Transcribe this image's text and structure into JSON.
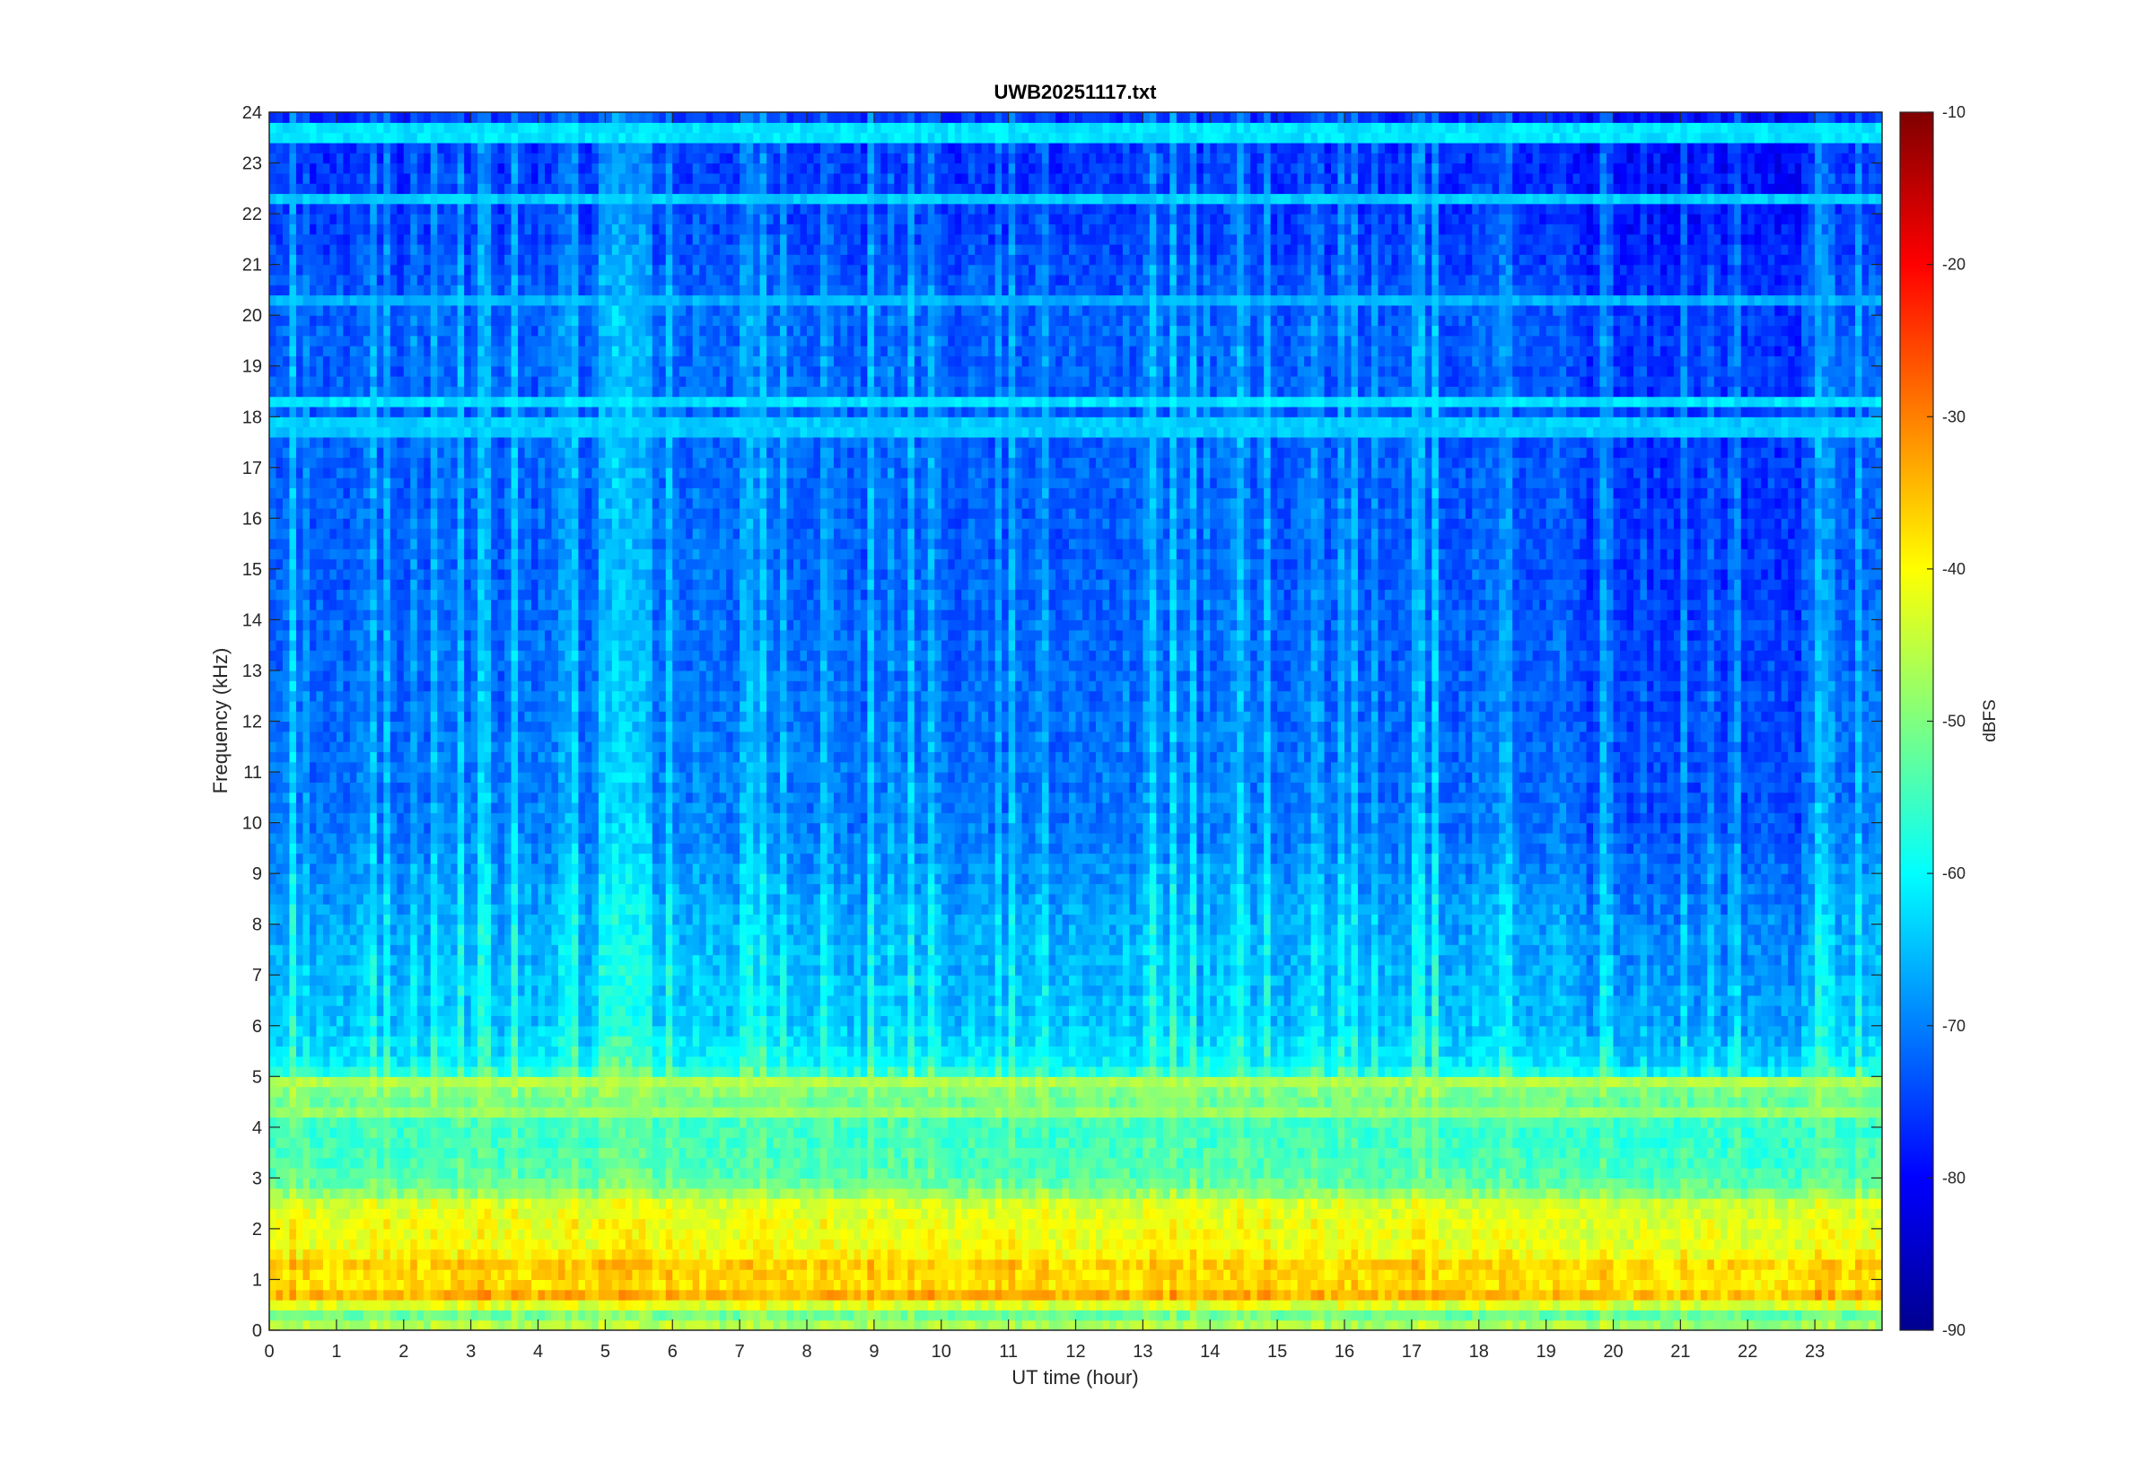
{
  "chart_data": {
    "type": "heatmap",
    "title": "UWB20251117.txt",
    "xlabel": "UT time (hour)",
    "ylabel": "Frequency (kHz)",
    "xlim": [
      0,
      24
    ],
    "ylim": [
      0,
      24
    ],
    "x_ticks": [
      "0",
      "1",
      "2",
      "3",
      "4",
      "5",
      "6",
      "7",
      "8",
      "9",
      "10",
      "11",
      "12",
      "13",
      "14",
      "15",
      "16",
      "17",
      "18",
      "19",
      "20",
      "21",
      "22",
      "23"
    ],
    "y_ticks": [
      "0",
      "1",
      "2",
      "3",
      "4",
      "5",
      "6",
      "7",
      "8",
      "9",
      "10",
      "11",
      "12",
      "13",
      "14",
      "15",
      "16",
      "17",
      "18",
      "19",
      "20",
      "21",
      "22",
      "23",
      "24"
    ],
    "colormap": "jet",
    "colorbar": {
      "label": "dBFS",
      "range": [
        -90,
        -10
      ],
      "ticks": [
        "-10",
        "-20",
        "-30",
        "-40",
        "-50",
        "-60",
        "-70",
        "-80",
        "-90"
      ]
    },
    "intensity_profile_dbfs": [
      {
        "freq_khz": 0.0,
        "level": -45
      },
      {
        "freq_khz": 0.3,
        "level": -52
      },
      {
        "freq_khz": 0.7,
        "level": -35
      },
      {
        "freq_khz": 1.0,
        "level": -40
      },
      {
        "freq_khz": 1.2,
        "level": -36
      },
      {
        "freq_khz": 1.6,
        "level": -42
      },
      {
        "freq_khz": 2.0,
        "level": -42
      },
      {
        "freq_khz": 2.5,
        "level": -44
      },
      {
        "freq_khz": 2.8,
        "level": -52
      },
      {
        "freq_khz": 3.2,
        "level": -55
      },
      {
        "freq_khz": 4.0,
        "level": -56
      },
      {
        "freq_khz": 4.8,
        "level": -50
      },
      {
        "freq_khz": 5.2,
        "level": -62
      },
      {
        "freq_khz": 6.0,
        "level": -66
      },
      {
        "freq_khz": 8.0,
        "level": -68
      },
      {
        "freq_khz": 10.0,
        "level": -72
      },
      {
        "freq_khz": 15.0,
        "level": -74
      },
      {
        "freq_khz": 20.0,
        "level": -74
      },
      {
        "freq_khz": 22.0,
        "level": -77
      },
      {
        "freq_khz": 24.0,
        "level": -78
      }
    ],
    "narrowband_lines": [
      {
        "freq_khz": 18.3,
        "level": -62
      },
      {
        "freq_khz": 20.3,
        "level": -66
      },
      {
        "freq_khz": 22.3,
        "level": -64
      },
      {
        "freq_khz": 17.8,
        "level": -64
      },
      {
        "freq_khz": 23.6,
        "level": -62
      },
      {
        "freq_khz": 4.3,
        "level": -48
      },
      {
        "freq_khz": 4.9,
        "level": -46
      }
    ]
  }
}
